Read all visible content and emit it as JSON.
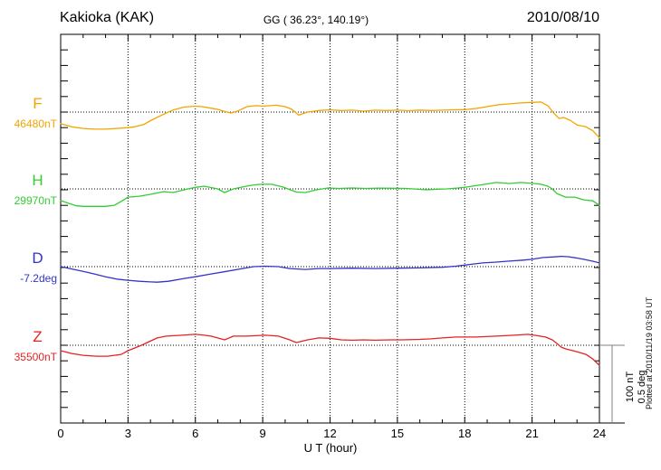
{
  "chart_data": {
    "type": "line",
    "title": "Kakioka (KAK)",
    "subtitle": "GG ( 36.23°, 140.19°)",
    "date": "2010/08/10",
    "xlabel": "U T (hour)",
    "x_range": [
      0,
      24
    ],
    "x_ticks": [
      0,
      3,
      6,
      9,
      12,
      15,
      18,
      21,
      24
    ],
    "grid": "dotted vertical lines every 3 hours; dotted horizontal baseline per component",
    "legend_position": "left of each trace baseline",
    "scale": {
      "nT_per_division": 100,
      "deg_per_division": 0.5,
      "bar_labels": [
        "100 nT",
        "0.5 deg"
      ]
    },
    "plotted_at": "Plotted at 2010/11/19 03:58 UT",
    "series": [
      {
        "name": "F",
        "baseline_value": "46480nT",
        "unit": "nT",
        "color": "#F2A500",
        "points": [
          [
            0,
            -15
          ],
          [
            0.5,
            -19
          ],
          [
            1,
            -21
          ],
          [
            1.5,
            -22
          ],
          [
            2,
            -22
          ],
          [
            2.5,
            -21
          ],
          [
            3,
            -20
          ],
          [
            3.3,
            -19
          ],
          [
            3.7,
            -16
          ],
          [
            4,
            -11
          ],
          [
            4.5,
            -4
          ],
          [
            5,
            2.5
          ],
          [
            5.5,
            6.5
          ],
          [
            6,
            7.5
          ],
          [
            6.3,
            7
          ],
          [
            6.7,
            5
          ],
          [
            7,
            3.5
          ],
          [
            7.4,
            0
          ],
          [
            7.6,
            -1.2
          ],
          [
            7.9,
            1.5
          ],
          [
            8.3,
            7
          ],
          [
            8.7,
            8.2
          ],
          [
            9,
            7.5
          ],
          [
            9.6,
            8.8
          ],
          [
            10,
            7
          ],
          [
            10.3,
            3.5
          ],
          [
            10.6,
            -4
          ],
          [
            11,
            0
          ],
          [
            11.5,
            2
          ],
          [
            12,
            2.9
          ],
          [
            12.5,
            2
          ],
          [
            13,
            2.4
          ],
          [
            13.5,
            1.2
          ],
          [
            14,
            2.4
          ],
          [
            14.5,
            2
          ],
          [
            15,
            2.4
          ],
          [
            15.5,
            1.8
          ],
          [
            16,
            2.6
          ],
          [
            16.5,
            2
          ],
          [
            17,
            2.4
          ],
          [
            17.5,
            2.9
          ],
          [
            18,
            3
          ],
          [
            18.5,
            4.7
          ],
          [
            19,
            7
          ],
          [
            19.5,
            9.4
          ],
          [
            20,
            10.6
          ],
          [
            20.5,
            11.8
          ],
          [
            21,
            12.4
          ],
          [
            21.4,
            12.9
          ],
          [
            21.7,
            8.2
          ],
          [
            22,
            -2.4
          ],
          [
            22.2,
            -8.2
          ],
          [
            22.4,
            -7
          ],
          [
            22.7,
            -10.6
          ],
          [
            23,
            -16.5
          ],
          [
            23.4,
            -19
          ],
          [
            23.7,
            -24
          ],
          [
            24,
            -33
          ]
        ]
      },
      {
        "name": "H",
        "baseline_value": "29970nT",
        "unit": "nT",
        "color": "#33CC33",
        "points": [
          [
            0,
            -15
          ],
          [
            0.3,
            -18
          ],
          [
            0.7,
            -21.8
          ],
          [
            1,
            -22.4
          ],
          [
            1.5,
            -22.4
          ],
          [
            2,
            -22.4
          ],
          [
            2.4,
            -21
          ],
          [
            2.7,
            -16
          ],
          [
            3,
            -10.6
          ],
          [
            3.5,
            -9.4
          ],
          [
            4,
            -7
          ],
          [
            4.6,
            -3.5
          ],
          [
            5,
            -4.7
          ],
          [
            5.5,
            -1.2
          ],
          [
            6,
            2
          ],
          [
            6.4,
            3.5
          ],
          [
            7,
            0
          ],
          [
            7.3,
            -4.7
          ],
          [
            7.7,
            0
          ],
          [
            8.1,
            2.4
          ],
          [
            8.5,
            4.7
          ],
          [
            8.9,
            5.9
          ],
          [
            9.4,
            5.9
          ],
          [
            9.9,
            2.4
          ],
          [
            10.5,
            -4.1
          ],
          [
            10.9,
            -4.7
          ],
          [
            11.4,
            -1.2
          ],
          [
            11.9,
            1.2
          ],
          [
            12.4,
            0.6
          ],
          [
            13,
            1.2
          ],
          [
            13.6,
            0.6
          ],
          [
            14.2,
            1
          ],
          [
            14.8,
            0.8
          ],
          [
            15.4,
            0.6
          ],
          [
            16,
            -0.6
          ],
          [
            16.3,
            -1.2
          ],
          [
            16.8,
            -0.4
          ],
          [
            17.2,
            0
          ],
          [
            17.7,
            1.2
          ],
          [
            18.1,
            2.4
          ],
          [
            18.9,
            5.9
          ],
          [
            19.4,
            8.2
          ],
          [
            20,
            7
          ],
          [
            20.5,
            8.2
          ],
          [
            21.1,
            7
          ],
          [
            21.4,
            5.9
          ],
          [
            21.7,
            3.5
          ],
          [
            21.9,
            0
          ],
          [
            22.1,
            -5.9
          ],
          [
            22.5,
            -10.6
          ],
          [
            22.9,
            -10.6
          ],
          [
            23.3,
            -14.1
          ],
          [
            23.7,
            -15.3
          ],
          [
            24,
            -21.2
          ]
        ]
      },
      {
        "name": "D",
        "baseline_value": "-7.2deg",
        "unit": "deg",
        "color": "#3333CC",
        "points": [
          [
            0,
            0
          ],
          [
            0.5,
            -0.015
          ],
          [
            1,
            -0.03
          ],
          [
            1.5,
            -0.047
          ],
          [
            2,
            -0.065
          ],
          [
            2.5,
            -0.08
          ],
          [
            3,
            -0.088
          ],
          [
            3.5,
            -0.094
          ],
          [
            4,
            -0.098
          ],
          [
            4.3,
            -0.1
          ],
          [
            4.8,
            -0.094
          ],
          [
            5.5,
            -0.076
          ],
          [
            6,
            -0.065
          ],
          [
            6.7,
            -0.047
          ],
          [
            7.4,
            -0.03
          ],
          [
            8.1,
            -0.012
          ],
          [
            8.6,
            0
          ],
          [
            9.1,
            0.003
          ],
          [
            9.7,
            0
          ],
          [
            10.2,
            -0.012
          ],
          [
            10.9,
            -0.018
          ],
          [
            11.5,
            -0.012
          ],
          [
            12,
            -0.012
          ],
          [
            13,
            -0.01
          ],
          [
            14,
            -0.012
          ],
          [
            15,
            -0.01
          ],
          [
            16,
            -0.008
          ],
          [
            17,
            -0.004
          ],
          [
            17.6,
            0.003
          ],
          [
            18.3,
            0.015
          ],
          [
            18.8,
            0.024
          ],
          [
            19.4,
            0.029
          ],
          [
            19.9,
            0.035
          ],
          [
            20.6,
            0.042
          ],
          [
            21,
            0.047
          ],
          [
            21.5,
            0.059
          ],
          [
            22,
            0.063
          ],
          [
            22.3,
            0.066
          ],
          [
            22.6,
            0.064
          ],
          [
            23,
            0.055
          ],
          [
            23.3,
            0.047
          ],
          [
            23.7,
            0.035
          ],
          [
            24,
            0.024
          ]
        ]
      },
      {
        "name": "Z",
        "baseline_value": "35500nT",
        "unit": "nT",
        "color": "#E62222",
        "points": [
          [
            0,
            -7
          ],
          [
            0.5,
            -10.6
          ],
          [
            1,
            -12.9
          ],
          [
            1.6,
            -14.1
          ],
          [
            2.1,
            -14.1
          ],
          [
            2.7,
            -11.8
          ],
          [
            3,
            -7
          ],
          [
            3.3,
            -3.5
          ],
          [
            3.6,
            0
          ],
          [
            3.9,
            4.1
          ],
          [
            4.3,
            9.4
          ],
          [
            4.7,
            11.8
          ],
          [
            5.4,
            12.9
          ],
          [
            6,
            14.1
          ],
          [
            6.4,
            12.9
          ],
          [
            6.7,
            11.8
          ],
          [
            7.3,
            7
          ],
          [
            7.7,
            11.8
          ],
          [
            8.3,
            11.8
          ],
          [
            9.1,
            12.9
          ],
          [
            9.7,
            11.8
          ],
          [
            10.2,
            7
          ],
          [
            10.5,
            3.5
          ],
          [
            11,
            7
          ],
          [
            11.5,
            9.4
          ],
          [
            12,
            9
          ],
          [
            12.5,
            7
          ],
          [
            13,
            6.5
          ],
          [
            13.5,
            7
          ],
          [
            14,
            6.5
          ],
          [
            14.7,
            7
          ],
          [
            15.2,
            7
          ],
          [
            16,
            7.6
          ],
          [
            16.5,
            8.2
          ],
          [
            17,
            9.4
          ],
          [
            17.6,
            10.6
          ],
          [
            18.5,
            10.6
          ],
          [
            19.4,
            11.8
          ],
          [
            20.2,
            12.9
          ],
          [
            20.8,
            14.1
          ],
          [
            21.1,
            12.9
          ],
          [
            21.6,
            10.6
          ],
          [
            21.9,
            7
          ],
          [
            22.1,
            2.4
          ],
          [
            22.3,
            -2.4
          ],
          [
            22.5,
            -4.7
          ],
          [
            23,
            -8.2
          ],
          [
            23.4,
            -11.8
          ],
          [
            23.7,
            -17.6
          ],
          [
            24,
            -25.9
          ]
        ]
      }
    ]
  }
}
